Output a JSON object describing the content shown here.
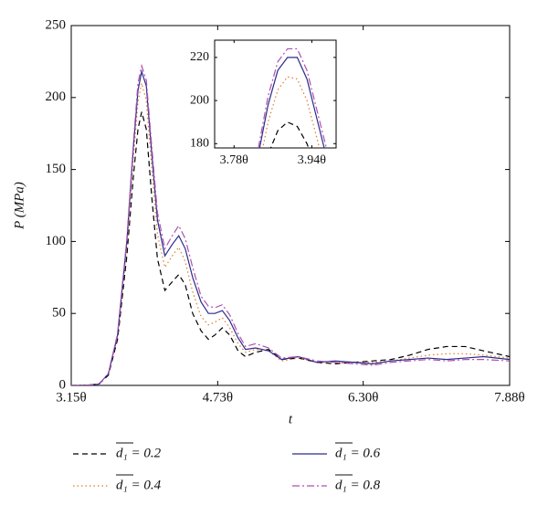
{
  "chart_data": [
    {
      "type": "line",
      "x_label": "t",
      "y_label": "P (MPa)",
      "annotation": "1",
      "xlim": [
        3.15,
        7.88
      ],
      "xticks": [
        {
          "value": 3.15,
          "label": "3.15θ"
        },
        {
          "value": 4.73,
          "label": "4.73θ"
        },
        {
          "value": 6.3,
          "label": "6.30θ"
        },
        {
          "value": 7.88,
          "label": "7.88θ"
        }
      ],
      "ylim": [
        0,
        250
      ],
      "yticks": [
        0,
        50,
        100,
        150,
        200,
        250
      ],
      "x": [
        3.15,
        3.3,
        3.45,
        3.55,
        3.65,
        3.75,
        3.82,
        3.87,
        3.91,
        3.96,
        4.02,
        4.08,
        4.16,
        4.24,
        4.31,
        4.38,
        4.46,
        4.55,
        4.63,
        4.7,
        4.78,
        4.86,
        4.95,
        5.03,
        5.14,
        5.28,
        5.42,
        5.6,
        5.8,
        6.0,
        6.2,
        6.4,
        6.6,
        6.8,
        7.0,
        7.2,
        7.4,
        7.6,
        7.88
      ],
      "series": [
        {
          "name": "d₁ = 0.2",
          "color": "#000000",
          "dash": "6,4",
          "values": [
            0,
            0,
            1,
            7,
            32,
            90,
            145,
            178,
            190,
            178,
            130,
            88,
            66,
            72,
            77,
            70,
            50,
            38,
            32,
            35,
            40,
            35,
            24,
            20,
            23,
            25,
            18,
            19,
            16,
            15,
            16,
            17,
            18,
            21,
            25,
            27,
            27,
            24,
            20
          ]
        },
        {
          "name": "d₁ = 0.4",
          "color": "#e07b2a",
          "dash": "1.5,3",
          "values": [
            0,
            0,
            1,
            8,
            34,
            96,
            158,
            197,
            210,
            198,
            150,
            105,
            82,
            90,
            96,
            86,
            65,
            48,
            42,
            44,
            47,
            40,
            29,
            23,
            25,
            24,
            17,
            19,
            16,
            16,
            16,
            16,
            17,
            19,
            21,
            22,
            22,
            21,
            19
          ]
        },
        {
          "name": "d₁ = 0.6",
          "color": "#2b2b8c",
          "dash": "none",
          "values": [
            0,
            0,
            1,
            8,
            35,
            100,
            165,
            205,
            218,
            208,
            160,
            115,
            90,
            98,
            104,
            95,
            75,
            58,
            50,
            50,
            52,
            45,
            33,
            25,
            26,
            24,
            18,
            20,
            16,
            17,
            16,
            15,
            17,
            18,
            19,
            18,
            19,
            20,
            18
          ]
        },
        {
          "name": "d₁ = 0.8",
          "color": "#b04fb0",
          "dash": "8,3,2,3",
          "values": [
            0,
            0,
            1,
            8,
            36,
            102,
            168,
            210,
            222,
            212,
            165,
            120,
            95,
            104,
            111,
            102,
            82,
            62,
            55,
            54,
            56,
            49,
            36,
            27,
            29,
            26,
            19,
            20,
            17,
            16,
            15,
            14,
            16,
            17,
            18,
            17,
            18,
            18,
            17
          ]
        }
      ]
    },
    {
      "type": "line",
      "xlim": [
        3.74,
        3.99
      ],
      "xticks": [
        {
          "value": 3.78,
          "label": "3.78θ"
        },
        {
          "value": 3.94,
          "label": "3.94θ"
        }
      ],
      "ylim": [
        178,
        228
      ],
      "yticks": [
        180,
        200,
        220
      ],
      "x": [
        3.83,
        3.85,
        3.87,
        3.89,
        3.91,
        3.93,
        3.95,
        3.97
      ],
      "series": [
        {
          "color": "#000000",
          "dash": "6,4",
          "values": [
            160,
            175,
            186,
            190,
            188,
            180,
            168,
            155
          ]
        },
        {
          "color": "#e07b2a",
          "dash": "1.5,3",
          "values": [
            168,
            190,
            205,
            211,
            210,
            200,
            183,
            165
          ]
        },
        {
          "color": "#2b2b8c",
          "dash": "none",
          "values": [
            175,
            198,
            214,
            220,
            220,
            210,
            192,
            174
          ]
        },
        {
          "color": "#b04fb0",
          "dash": "8,3,2,3",
          "values": [
            178,
            202,
            218,
            224,
            224,
            214,
            196,
            178
          ]
        }
      ]
    }
  ]
}
